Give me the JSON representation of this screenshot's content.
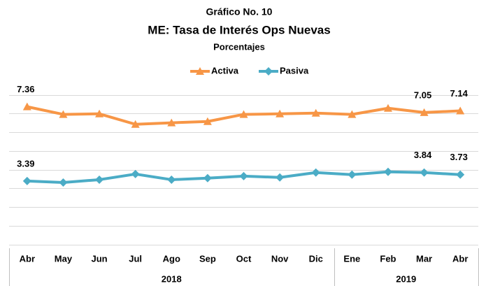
{
  "chart_data": {
    "type": "line",
    "title": "Gráfico No. 10",
    "subtitle": "ME: Tasa de Interés Ops Nuevas",
    "unit_label": "Porcentajes",
    "categories": [
      "Abr",
      "May",
      "Jun",
      "Jul",
      "Ago",
      "Sep",
      "Oct",
      "Nov",
      "Dic",
      "Ene",
      "Feb",
      "Mar",
      "Abr"
    ],
    "x_groups": [
      {
        "label": "2018",
        "count": 9
      },
      {
        "label": "2019",
        "count": 4
      }
    ],
    "series": [
      {
        "name": "Activa",
        "color": "#f79646",
        "marker": "triangle",
        "values": [
          7.36,
          6.95,
          6.98,
          6.42,
          6.5,
          6.57,
          6.95,
          6.98,
          7.02,
          6.95,
          7.28,
          7.05,
          7.14
        ],
        "value_labels": [
          "7.36",
          null,
          null,
          null,
          null,
          null,
          null,
          null,
          null,
          null,
          null,
          "7.05",
          "7.14"
        ]
      },
      {
        "name": "Pasiva",
        "color": "#4bacc6",
        "marker": "diamond",
        "values": [
          3.39,
          3.31,
          3.46,
          3.76,
          3.46,
          3.54,
          3.65,
          3.58,
          3.84,
          3.73,
          3.88,
          3.84,
          3.73
        ],
        "value_labels": [
          "3.39",
          null,
          null,
          null,
          null,
          null,
          null,
          null,
          null,
          null,
          null,
          "3.84",
          "3.73"
        ]
      }
    ],
    "ylim": [
      0,
      8
    ],
    "yticks": [
      0,
      1,
      2,
      3,
      4,
      5,
      6,
      7,
      8
    ],
    "grid": true,
    "legend": "top"
  }
}
